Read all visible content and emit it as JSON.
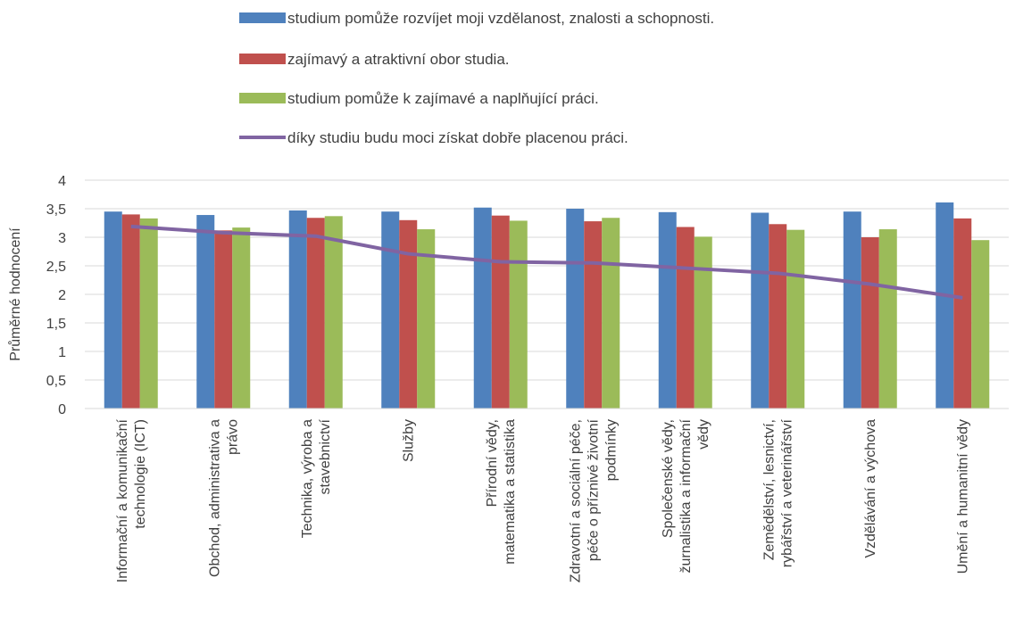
{
  "chart_data": {
    "type": "bar",
    "ylabel": "Průměrné hodnocení",
    "ylim": [
      0,
      4
    ],
    "yticks": [
      "0",
      "0,5",
      "1",
      "1,5",
      "2",
      "2,5",
      "3",
      "3,5",
      "4"
    ],
    "grid": true,
    "legend_position": "top",
    "categories": [
      [
        "Informační a komunikační",
        "technologie (ICT)"
      ],
      [
        "Obchod, administrativa a",
        "právo"
      ],
      [
        "Technika, výroba a",
        "stavebnictví"
      ],
      [
        "Služby"
      ],
      [
        "Přírodní vědy,",
        "matematika a statistika"
      ],
      [
        "Zdravotní a sociální péče,",
        "péče o příznivé životní",
        "podmínky"
      ],
      [
        "Společenské vědy,",
        "žurnalistika a informační",
        "vědy"
      ],
      [
        "Zemědělství, lesnictví,",
        "rybářství a veterinářství"
      ],
      [
        "Vzdělávání a výchova"
      ],
      [
        "Umění a humanitní vědy"
      ]
    ],
    "series": [
      {
        "name": "studium pomůže rozvíjet moji vzdělanost, znalosti a schopnosti.",
        "kind": "bar",
        "color": "#4f81bd",
        "values": [
          3.45,
          3.39,
          3.47,
          3.45,
          3.52,
          3.5,
          3.44,
          3.43,
          3.45,
          3.61
        ]
      },
      {
        "name": "zajímavý a atraktivní obor studia.",
        "kind": "bar",
        "color": "#c0504d",
        "values": [
          3.4,
          3.12,
          3.34,
          3.3,
          3.38,
          3.28,
          3.18,
          3.23,
          3.0,
          3.33
        ]
      },
      {
        "name": "studium pomůže k zajímavé a naplňující práci.",
        "kind": "bar",
        "color": "#9bbb59",
        "values": [
          3.33,
          3.17,
          3.37,
          3.14,
          3.29,
          3.34,
          3.01,
          3.13,
          3.14,
          2.95
        ]
      },
      {
        "name": "díky studiu budu moci získat dobře placenou práci.",
        "kind": "line",
        "color": "#8064a2",
        "values": [
          3.19,
          3.08,
          3.02,
          2.71,
          2.57,
          2.55,
          2.46,
          2.37,
          2.18,
          1.94
        ]
      }
    ]
  }
}
